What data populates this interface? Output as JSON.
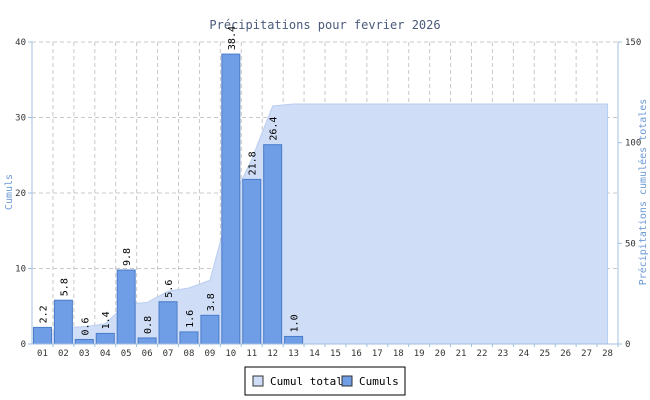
{
  "chart_data": {
    "type": "bar",
    "title": "Précipitations pour fevrier 2026",
    "ylabel_left": "Cumuls",
    "ylabel_right": "Précipitations cumulées totales",
    "ylim_left": [
      0,
      40
    ],
    "ylim_right": [
      0,
      150
    ],
    "yticks_left": [
      0,
      10,
      20,
      30,
      40
    ],
    "yticks_right": [
      0,
      50,
      100,
      150
    ],
    "grid": true,
    "legend_position": "bottom",
    "categories": [
      "01",
      "02",
      "03",
      "04",
      "05",
      "06",
      "07",
      "08",
      "09",
      "10",
      "11",
      "12",
      "13",
      "14",
      "15",
      "16",
      "17",
      "18",
      "19",
      "20",
      "21",
      "22",
      "23",
      "24",
      "25",
      "26",
      "27",
      "28"
    ],
    "series": [
      {
        "name": "Cumuls",
        "type": "bar",
        "axis": "left",
        "color": "#6f9ee6",
        "values": [
          2.2,
          5.8,
          0.6,
          1.4,
          9.8,
          0.8,
          5.6,
          1.6,
          3.8,
          38.4,
          21.8,
          26.4,
          1.0,
          null,
          null,
          null,
          null,
          null,
          null,
          null,
          null,
          null,
          null,
          null,
          null,
          null,
          null,
          null
        ],
        "labels": [
          "2.2",
          "5.8",
          "0.6",
          "1.4",
          "9.8",
          "0.8",
          "5.6",
          "1.6",
          "3.8",
          "38.4",
          "21.8",
          "26.4",
          "1.0"
        ]
      },
      {
        "name": "Cumul total",
        "type": "area",
        "axis": "right",
        "color": "#cfddf7",
        "values": [
          2.2,
          8.0,
          8.6,
          10.0,
          19.8,
          20.6,
          26.2,
          27.8,
          31.6,
          70.0,
          91.8,
          118.2,
          119.2,
          119.2,
          119.2,
          119.2,
          119.2,
          119.2,
          119.2,
          119.2,
          119.2,
          119.2,
          119.2,
          119.2,
          119.2,
          119.2,
          119.2,
          119.2
        ]
      }
    ]
  }
}
